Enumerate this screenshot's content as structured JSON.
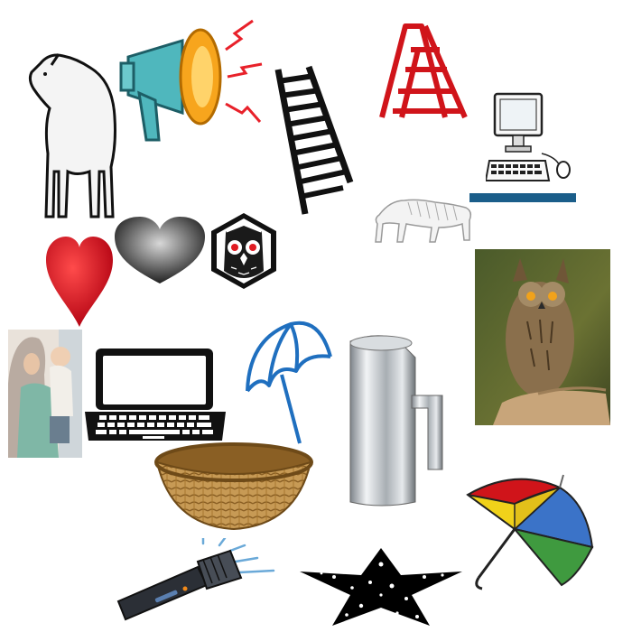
{
  "canvas": {
    "background": "#ffffff"
  },
  "items": [
    {
      "name": "sheep",
      "icon": "sheep-icon"
    },
    {
      "name": "megaphone",
      "icon": "megaphone-icon"
    },
    {
      "name": "railroad-track",
      "icon": "railroad-track-icon"
    },
    {
      "name": "ladder",
      "icon": "ladder-icon"
    },
    {
      "name": "desktop-computer",
      "icon": "desktop-computer-icon"
    },
    {
      "name": "tiger",
      "icon": "tiger-icon"
    },
    {
      "name": "red-heart",
      "icon": "red-heart-icon"
    },
    {
      "name": "gray-heart",
      "icon": "gray-heart-icon"
    },
    {
      "name": "owl-hexagon",
      "icon": "owl-hexagon-icon"
    },
    {
      "name": "owl-photo",
      "icon": "owl-photo"
    },
    {
      "name": "mother-child-photo",
      "icon": "mother-child-photo"
    },
    {
      "name": "laptop",
      "icon": "laptop-icon"
    },
    {
      "name": "blue-umbrella",
      "icon": "umbrella-icon"
    },
    {
      "name": "pitcher",
      "icon": "pitcher-icon"
    },
    {
      "name": "basket",
      "icon": "basket-icon"
    },
    {
      "name": "colorful-umbrella",
      "icon": "umbrella-icon"
    },
    {
      "name": "flashlight",
      "icon": "flashlight-icon"
    },
    {
      "name": "star",
      "icon": "star-icon"
    }
  ],
  "colors": {
    "red": "#d0141a",
    "teal": "#2a8a8a",
    "orange": "#f5a623",
    "blue": "#1f6fbf",
    "dark": "#111111",
    "basket": "#c79a55",
    "metal": "#b8bcc0"
  },
  "tiger_banner": {
    "left_text": "",
    "right_text": ""
  }
}
